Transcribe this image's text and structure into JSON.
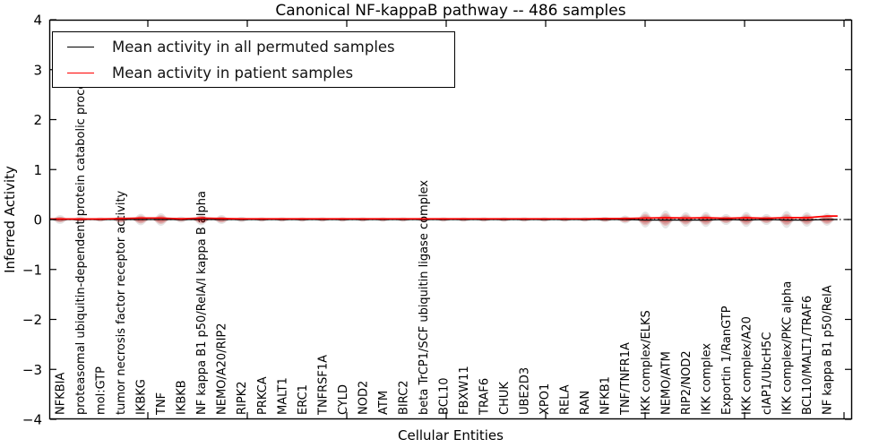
{
  "figure": {
    "title": "Canonical NF-kappaB pathway -- 486 samples",
    "xlabel": "Cellular Entities",
    "ylabel": "Inferred Activity"
  },
  "legend": {
    "items": [
      {
        "label": "Mean activity in all permuted samples",
        "color": "#000000"
      },
      {
        "label": "Mean activity in patient samples",
        "color": "#ff0000"
      }
    ]
  },
  "chart_data": {
    "type": "violin",
    "title": "Canonical NF-kappaB pathway -- 486 samples",
    "xlabel": "Cellular Entities",
    "ylabel": "Inferred Activity",
    "ylim": [
      -4,
      4
    ],
    "yticks": [
      4,
      3,
      2,
      1,
      0,
      -1,
      -2,
      -3,
      -4
    ],
    "grid": false,
    "legend_position": "upper left",
    "zero_line_style": "dotted",
    "colors": {
      "permuted_line": "#000000",
      "patient_line": "#ff0000",
      "permuted_violin": "rgba(0,0,0,0.10)",
      "permuted_violin_inner": "rgba(0,0,0,0.13)",
      "patient_violin": "rgba(255,0,0,0.18)",
      "patient_violin_inner": "rgba(255,0,0,0.25)"
    },
    "categories": [
      "NFKBIA",
      "proteasomal ubiquitin-dependent protein catabolic process",
      "mol:GTP",
      "tumor necrosis factor receptor activity",
      "IKBKG",
      "TNF",
      "IKBKB",
      "NF kappa B1 p50/RelA/I kappa B alpha",
      "NEMO/A20/RIP2",
      "RIPK2",
      "PRKCA",
      "MALT1",
      "ERC1",
      "TNFRSF1A",
      "CYLD",
      "NOD2",
      "ATM",
      "BIRC2",
      "beta TrCP1/SCF ubiquitin ligase complex",
      "BCL10",
      "FBXW11",
      "TRAF6",
      "CHUK",
      "UBE2D3",
      "XPO1",
      "RELA",
      "RAN",
      "NFKB1",
      "TNF/TNFR1A",
      "IKK complex/ELKS",
      "NEMO/ATM",
      "RIP2/NOD2",
      "IKK complex",
      "Exportin 1/RanGTP",
      "IKK complex/A20",
      "cIAP1/UbcH5C",
      "IKK complex/PKC alpha",
      "BCL10/MALT1/TRAF6",
      "NF kappa B1 p50/RelA"
    ],
    "series": [
      {
        "name": "Mean activity in all permuted samples",
        "color": "#000000",
        "style": "solid",
        "values": [
          0,
          0,
          0,
          0,
          0,
          0,
          0,
          0,
          0,
          0,
          0,
          0,
          0,
          0,
          0,
          0,
          0,
          0,
          0,
          0,
          0,
          0,
          0,
          0,
          0,
          0,
          0,
          0,
          0,
          -0.01,
          -0.01,
          -0.01,
          -0.01,
          0,
          -0.01,
          0,
          -0.01,
          -0.01,
          0
        ]
      },
      {
        "name": "Mean activity in patient samples",
        "color": "#ff0000",
        "style": "solid",
        "values": [
          0.01,
          0.01,
          0.01,
          0.02,
          0.03,
          0.03,
          0.015,
          0.03,
          0.02,
          0.015,
          0.015,
          0.015,
          0.015,
          0.015,
          0.015,
          0.015,
          0.015,
          0.015,
          0.015,
          0.015,
          0.015,
          0.015,
          0.015,
          0.015,
          0.015,
          0.015,
          0.015,
          0.02,
          0.02,
          0.03,
          0.035,
          0.03,
          0.035,
          0.025,
          0.035,
          0.025,
          0.04,
          0.035,
          0.07
        ]
      }
    ],
    "violins": {
      "permuted_half_heights": [
        0.09,
        0.07,
        0.045,
        0.08,
        0.115,
        0.125,
        0.06,
        0.115,
        0.09,
        0.055,
        0.045,
        0.045,
        0.045,
        0.045,
        0.045,
        0.045,
        0.045,
        0.045,
        0.055,
        0.045,
        0.045,
        0.045,
        0.045,
        0.045,
        0.045,
        0.045,
        0.045,
        0.055,
        0.08,
        0.16,
        0.18,
        0.145,
        0.15,
        0.11,
        0.15,
        0.11,
        0.17,
        0.145,
        0.125
      ],
      "patient_half_heights": [
        0.055,
        0.035,
        0.025,
        0.055,
        0.08,
        0.09,
        0.035,
        0.08,
        0.06,
        0.025,
        0.025,
        0.025,
        0.025,
        0.025,
        0.025,
        0.025,
        0.025,
        0.025,
        0.03,
        0.025,
        0.025,
        0.025,
        0.025,
        0.025,
        0.025,
        0.025,
        0.025,
        0.035,
        0.055,
        0.115,
        0.125,
        0.1,
        0.105,
        0.07,
        0.105,
        0.07,
        0.115,
        0.1,
        0.09
      ]
    }
  }
}
